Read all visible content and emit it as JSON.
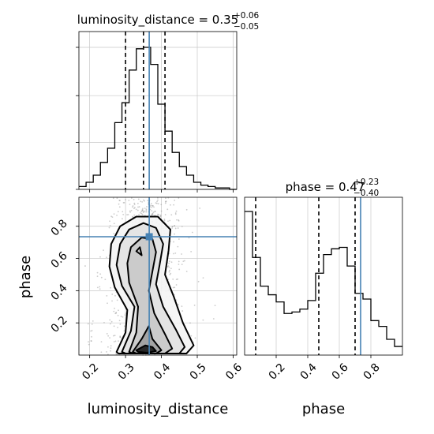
{
  "chart_data": {
    "type": "corner",
    "truth_color": "#4682b4",
    "panels": [
      {
        "id": "luminosity_distance_hist",
        "type": "histogram",
        "title_base": "luminosity_distance = 0.35",
        "title_sup": "+0.06",
        "title_sub": "−0.05",
        "xlim": [
          0.17,
          0.61
        ],
        "bins": [
          0.17,
          0.19,
          0.21,
          0.23,
          0.25,
          0.27,
          0.29,
          0.31,
          0.33,
          0.35,
          0.37,
          0.39,
          0.41,
          0.43,
          0.45,
          0.47,
          0.49,
          0.51,
          0.53,
          0.55,
          0.57,
          0.59,
          0.61
        ],
        "counts": [
          0.02,
          0.05,
          0.1,
          0.19,
          0.29,
          0.47,
          0.61,
          0.84,
          0.99,
          1.0,
          0.88,
          0.6,
          0.41,
          0.26,
          0.16,
          0.1,
          0.05,
          0.03,
          0.02,
          0.01,
          0.01,
          0.0
        ],
        "quantiles": [
          0.3,
          0.35,
          0.41
        ],
        "truth": 0.366
      },
      {
        "id": "phase_hist",
        "type": "histogram",
        "title_base": "phase = 0.47",
        "title_sup": "+0.23",
        "title_sub": "−0.40",
        "xlim": [
          0.0,
          1.0
        ],
        "bins": [
          0.0,
          0.05,
          0.1,
          0.15,
          0.2,
          0.25,
          0.3,
          0.35,
          0.4,
          0.45,
          0.5,
          0.55,
          0.6,
          0.65,
          0.7,
          0.75,
          0.8,
          0.85,
          0.9,
          0.95,
          1.0
        ],
        "counts": [
          1.0,
          0.68,
          0.48,
          0.42,
          0.37,
          0.29,
          0.3,
          0.32,
          0.38,
          0.57,
          0.7,
          0.74,
          0.75,
          0.62,
          0.43,
          0.39,
          0.24,
          0.2,
          0.11,
          0.06
        ],
        "quantiles": [
          0.07,
          0.47,
          0.7
        ],
        "truth": 0.735,
        "xlabel": "phase",
        "xticks": [
          "0.2",
          "0.4",
          "0.6",
          "0.8"
        ],
        "xtick_values": [
          0.2,
          0.4,
          0.6,
          0.8
        ]
      },
      {
        "id": "joint",
        "type": "contour",
        "xlim": [
          0.17,
          0.61
        ],
        "ylim": [
          0.0,
          0.98
        ],
        "xlabel": "luminosity_distance",
        "ylabel": "phase",
        "xticks": [
          "0.2",
          "0.3",
          "0.4",
          "0.5",
          "0.6"
        ],
        "xtick_values": [
          0.2,
          0.3,
          0.4,
          0.5,
          0.6
        ],
        "yticks": [
          "0.2",
          "0.4",
          "0.6",
          "0.8"
        ],
        "ytick_values": [
          0.2,
          0.4,
          0.6,
          0.8
        ],
        "truth": [
          0.366,
          0.735
        ],
        "contours": [
          [
            [
              0.275,
              0.02
            ],
            [
              0.3,
              0.14
            ],
            [
              0.305,
              0.28
            ],
            [
              0.27,
              0.42
            ],
            [
              0.255,
              0.55
            ],
            [
              0.26,
              0.69
            ],
            [
              0.285,
              0.8
            ],
            [
              0.33,
              0.86
            ],
            [
              0.39,
              0.86
            ],
            [
              0.425,
              0.78
            ],
            [
              0.42,
              0.65
            ],
            [
              0.41,
              0.5
            ],
            [
              0.435,
              0.36
            ],
            [
              0.46,
              0.2
            ],
            [
              0.49,
              0.06
            ],
            [
              0.47,
              0.01
            ],
            [
              0.28,
              0.01
            ]
          ],
          [
            [
              0.29,
              0.02
            ],
            [
              0.315,
              0.15
            ],
            [
              0.325,
              0.3
            ],
            [
              0.29,
              0.43
            ],
            [
              0.275,
              0.56
            ],
            [
              0.285,
              0.69
            ],
            [
              0.31,
              0.78
            ],
            [
              0.35,
              0.82
            ],
            [
              0.385,
              0.79
            ],
            [
              0.405,
              0.69
            ],
            [
              0.395,
              0.56
            ],
            [
              0.385,
              0.44
            ],
            [
              0.405,
              0.3
            ],
            [
              0.44,
              0.16
            ],
            [
              0.465,
              0.05
            ],
            [
              0.45,
              0.01
            ],
            [
              0.3,
              0.01
            ]
          ],
          [
            [
              0.31,
              0.02
            ],
            [
              0.33,
              0.14
            ],
            [
              0.335,
              0.3
            ],
            [
              0.31,
              0.45
            ],
            [
              0.305,
              0.57
            ],
            [
              0.315,
              0.67
            ],
            [
              0.345,
              0.73
            ],
            [
              0.375,
              0.72
            ],
            [
              0.385,
              0.64
            ],
            [
              0.375,
              0.52
            ],
            [
              0.365,
              0.4
            ],
            [
              0.38,
              0.26
            ],
            [
              0.41,
              0.13
            ],
            [
              0.43,
              0.04
            ],
            [
              0.41,
              0.01
            ],
            [
              0.32,
              0.01
            ]
          ],
          [
            [
              0.32,
              0.02
            ],
            [
              0.345,
              0.1
            ],
            [
              0.365,
              0.18
            ],
            [
              0.375,
              0.1
            ],
            [
              0.4,
              0.03
            ],
            [
              0.385,
              0.01
            ],
            [
              0.33,
              0.01
            ]
          ],
          [
            [
              0.33,
              0.03
            ],
            [
              0.355,
              0.06
            ],
            [
              0.375,
              0.05
            ],
            [
              0.385,
              0.025
            ],
            [
              0.36,
              0.015
            ],
            [
              0.335,
              0.02
            ]
          ],
          [
            [
              0.33,
              0.645
            ],
            [
              0.345,
              0.62
            ],
            [
              0.34,
              0.67
            ]
          ]
        ]
      }
    ]
  }
}
